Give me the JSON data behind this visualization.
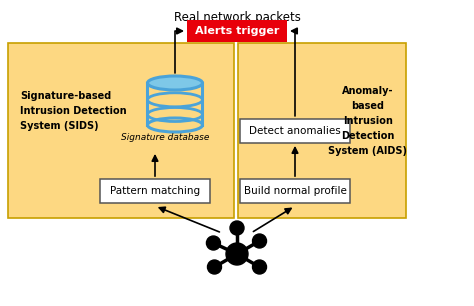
{
  "title": "Real network packets",
  "bg_color": "#ffffff",
  "sids_box_color": "#fdd882",
  "aids_box_color": "#fdd882",
  "alert_box_color": "#e8000a",
  "alert_text_color": "#ffffff",
  "alert_text": "Alerts trigger",
  "pattern_matching_text": "Pattern matching",
  "build_normal_text": "Build normal profile",
  "detect_anomalies_text": "Detect anomalies",
  "sig_db_text": "Signature database",
  "sids_label": "Signature-based\nIntrusion Detection\nSystem (SIDS)",
  "aids_label": "Anomaly-\nbased\nIntrusion\nDetection\nSystem (AIDS)",
  "db_ring_color": "#4aa3d9",
  "db_fill_color": "#fdd882",
  "db_top_color": "#7ec8e8"
}
